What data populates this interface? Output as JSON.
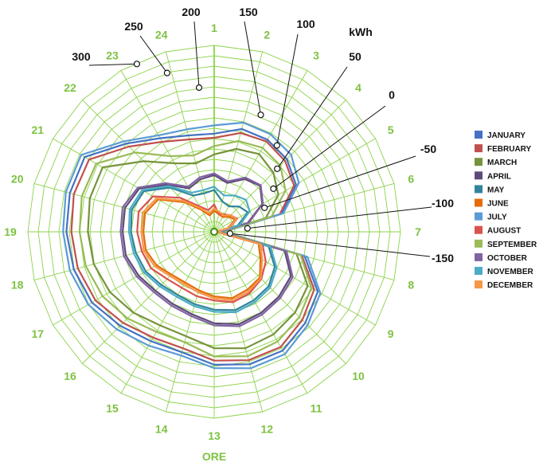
{
  "chart_data": {
    "type": "radar",
    "unit_label": "kWh",
    "axis_title": "ORE",
    "categories": [
      "1",
      "2",
      "3",
      "4",
      "5",
      "6",
      "7",
      "8",
      "9",
      "10",
      "11",
      "12",
      "13",
      "14",
      "15",
      "16",
      "17",
      "18",
      "19",
      "20",
      "21",
      "22",
      "23",
      "24"
    ],
    "r_range": [
      -150,
      300
    ],
    "r_ticks": [
      -150,
      -100,
      -50,
      0,
      50,
      100,
      150,
      200,
      250,
      300
    ],
    "grid": true,
    "legend_position": "right",
    "colors": {
      "grid": "#8cd34a",
      "axis_labels": "#7dc242",
      "January": "#4472c4",
      "February": "#c0504d",
      "March": "#77933c",
      "April": "#604a7b",
      "May": "#31849b",
      "June": "#e46c0a",
      "July": "#5b9bd5",
      "August": "#d9534f",
      "September": "#9bbb59",
      "October": "#8064a2",
      "November": "#4bacc6",
      "December": "#f79646"
    },
    "series": [
      {
        "name": "JANUARY",
        "values": [
          87,
          107,
          107,
          98,
          78,
          19,
          -126,
          76,
          139,
          161,
          181,
          181,
          171,
          151,
          155,
          171,
          191,
          201,
          207,
          211,
          211,
          151,
          111,
          91
        ]
      },
      {
        "name": "FEBRUARY",
        "values": [
          77,
          97,
          102,
          92,
          73,
          14,
          -126,
          69,
          129,
          151,
          171,
          171,
          161,
          141,
          145,
          161,
          181,
          191,
          195,
          201,
          199,
          141,
          101,
          81
        ]
      },
      {
        "name": "MARCH",
        "values": [
          37,
          57,
          67,
          52,
          29,
          -21,
          -131,
          56,
          111,
          126,
          136,
          141,
          131,
          111,
          111,
          126,
          141,
          151,
          155,
          161,
          161,
          91,
          41,
          21
        ]
      },
      {
        "name": "APRIL",
        "values": [
          -13,
          -28,
          -3,
          7,
          -16,
          -66,
          -136,
          26,
          64,
          71,
          76,
          81,
          71,
          56,
          51,
          51,
          61,
          71,
          71,
          73,
          59,
          11,
          -29,
          -19
        ]
      },
      {
        "name": "MAY",
        "values": [
          -49,
          -74,
          -79,
          -64,
          -56,
          -91,
          -141,
          -14,
          19,
          36,
          41,
          46,
          38,
          31,
          26,
          31,
          41,
          46,
          51,
          56,
          46,
          1,
          -49,
          -54
        ]
      },
      {
        "name": "JUNE",
        "values": [
          -99,
          -106,
          -109,
          -99,
          -91,
          -116,
          -146,
          -39,
          -21,
          6,
          11,
          16,
          6,
          -4,
          -9,
          -4,
          11,
          21,
          21,
          23,
          6,
          -49,
          -89,
          -109
        ]
      },
      {
        "name": "JULY",
        "values": [
          107,
          123,
          122,
          113,
          86,
          23,
          -126,
          83,
          146,
          169,
          191,
          191,
          179,
          159,
          167,
          183,
          201,
          211,
          215,
          221,
          221,
          159,
          119,
          106
        ]
      },
      {
        "name": "AUGUST",
        "values": [
          -84,
          -106,
          -101,
          -94,
          -86,
          -111,
          -141,
          -29,
          -6,
          11,
          21,
          26,
          16,
          11,
          6,
          11,
          26,
          31,
          36,
          39,
          21,
          -34,
          -79,
          -96
        ]
      },
      {
        "name": "SEPTEMBER",
        "values": [
          57,
          77,
          84,
          76,
          49,
          -6,
          -128,
          66,
          121,
          141,
          156,
          161,
          151,
          126,
          129,
          146,
          161,
          171,
          175,
          181,
          179,
          121,
          61,
          41
        ]
      },
      {
        "name": "OCTOBER",
        "values": [
          -9,
          -24,
          1,
          9,
          -14,
          -63,
          -134,
          31,
          69,
          76,
          81,
          86,
          76,
          61,
          56,
          56,
          66,
          76,
          76,
          79,
          63,
          16,
          -24,
          -14
        ]
      },
      {
        "name": "NOVEMBER",
        "values": [
          -41,
          -59,
          -49,
          -41,
          -51,
          -86,
          -139,
          -9,
          24,
          41,
          46,
          51,
          43,
          36,
          31,
          36,
          46,
          51,
          56,
          61,
          51,
          6,
          -41,
          -46
        ]
      },
      {
        "name": "DECEMBER",
        "values": [
          -93,
          -101,
          -104,
          -93,
          -88,
          -113,
          -143,
          -34,
          -16,
          9,
          16,
          21,
          11,
          1,
          -4,
          1,
          16,
          26,
          26,
          29,
          11,
          -44,
          -84,
          -104
        ]
      }
    ]
  }
}
